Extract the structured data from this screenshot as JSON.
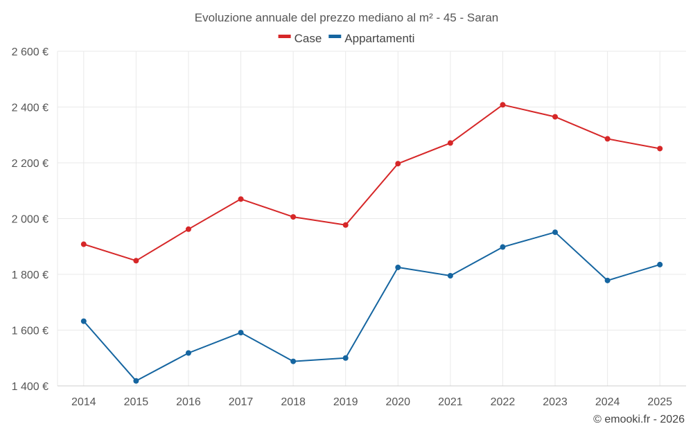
{
  "chart_data": {
    "type": "line",
    "title": "Evoluzione annuale del prezzo mediano al m² - 45 - Saran",
    "categories": [
      "2014",
      "2015",
      "2016",
      "2017",
      "2018",
      "2019",
      "2020",
      "2021",
      "2022",
      "2023",
      "2024",
      "2025"
    ],
    "series": [
      {
        "name": "Case",
        "color": "#d62728",
        "values": [
          1908,
          1849,
          1962,
          2070,
          2006,
          1977,
          2197,
          2271,
          2408,
          2365,
          2286,
          2251
        ]
      },
      {
        "name": "Appartamenti",
        "color": "#1565a0",
        "values": [
          1632,
          1418,
          1518,
          1591,
          1488,
          1500,
          1825,
          1795,
          1898,
          1951,
          1778,
          1835
        ]
      }
    ],
    "ylim": [
      1400,
      2600
    ],
    "yticks": [
      1400,
      1600,
      1800,
      2000,
      2200,
      2400,
      2600
    ],
    "ytick_labels": [
      "1 400 €",
      "1 600 €",
      "1 800 €",
      "2 000 €",
      "2 200 €",
      "2 400 €",
      "2 600 €"
    ],
    "xlabel": "",
    "ylabel": "",
    "legend": "top-center",
    "grid": true,
    "credit": "© emooki.fr - 2026"
  }
}
